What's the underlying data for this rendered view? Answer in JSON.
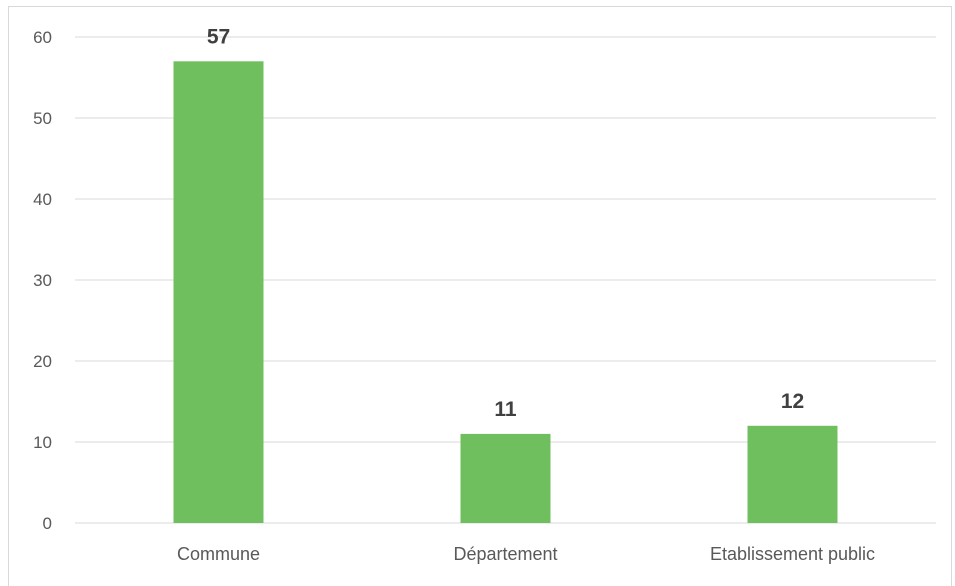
{
  "chart_data": {
    "type": "bar",
    "categories": [
      "Commune",
      "Département",
      "Etablissement public"
    ],
    "values": [
      57,
      11,
      12
    ],
    "data_labels": [
      "57",
      "11",
      "12"
    ],
    "yticks": [
      0,
      10,
      20,
      30,
      40,
      50,
      60
    ],
    "ytick_labels": [
      "0",
      "10",
      "20",
      "30",
      "40",
      "50",
      "60"
    ],
    "ylim": [
      0,
      60
    ],
    "title": "",
    "xlabel": "",
    "ylabel": "",
    "grid": true,
    "legend": "none",
    "bar_color": "#70bf5e",
    "grid_color": "#d9d9d9",
    "label_color": "#595959",
    "data_label_color": "#404040"
  }
}
